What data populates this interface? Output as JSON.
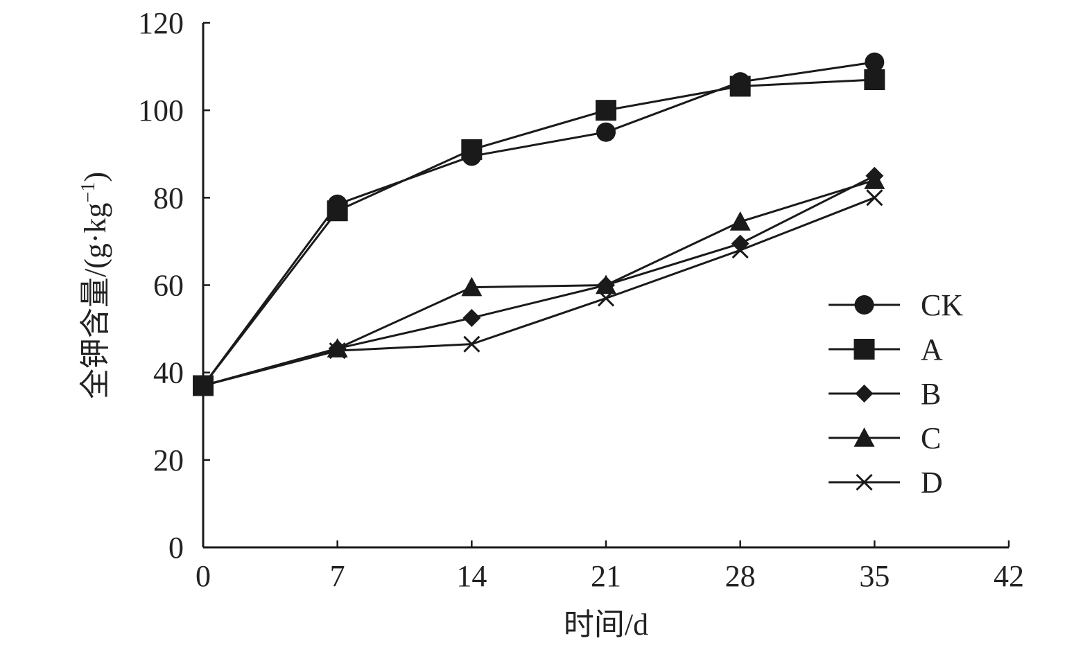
{
  "chart_data": {
    "type": "line",
    "title": "",
    "xlabel": "时间/d",
    "ylabel": "全钾含量/(g·kg",
    "ylabel_sup": "−1",
    "ylabel_close": ")",
    "x": [
      0,
      7,
      14,
      21,
      28,
      35
    ],
    "xlim": [
      0,
      42
    ],
    "ylim": [
      0,
      120
    ],
    "xticks": [
      0,
      7,
      14,
      21,
      28,
      35,
      42
    ],
    "yticks": [
      0,
      20,
      40,
      60,
      80,
      100,
      120
    ],
    "grid": false,
    "legend_position": "right",
    "line_color": "#1a1a1a",
    "series": [
      {
        "name": "CK",
        "marker": "circle",
        "values": [
          37,
          78.5,
          89.5,
          95,
          106.5,
          111
        ]
      },
      {
        "name": "A",
        "marker": "square",
        "values": [
          37,
          77,
          91,
          100,
          105.5,
          107
        ]
      },
      {
        "name": "B",
        "marker": "diamond",
        "values": [
          37,
          45.5,
          52.5,
          60,
          69.5,
          85
        ]
      },
      {
        "name": "C",
        "marker": "triangle",
        "values": [
          37,
          45.5,
          59.5,
          60,
          74.5,
          84
        ]
      },
      {
        "name": "D",
        "marker": "cross",
        "values": [
          37,
          45,
          46.5,
          57,
          68,
          80
        ]
      }
    ]
  }
}
